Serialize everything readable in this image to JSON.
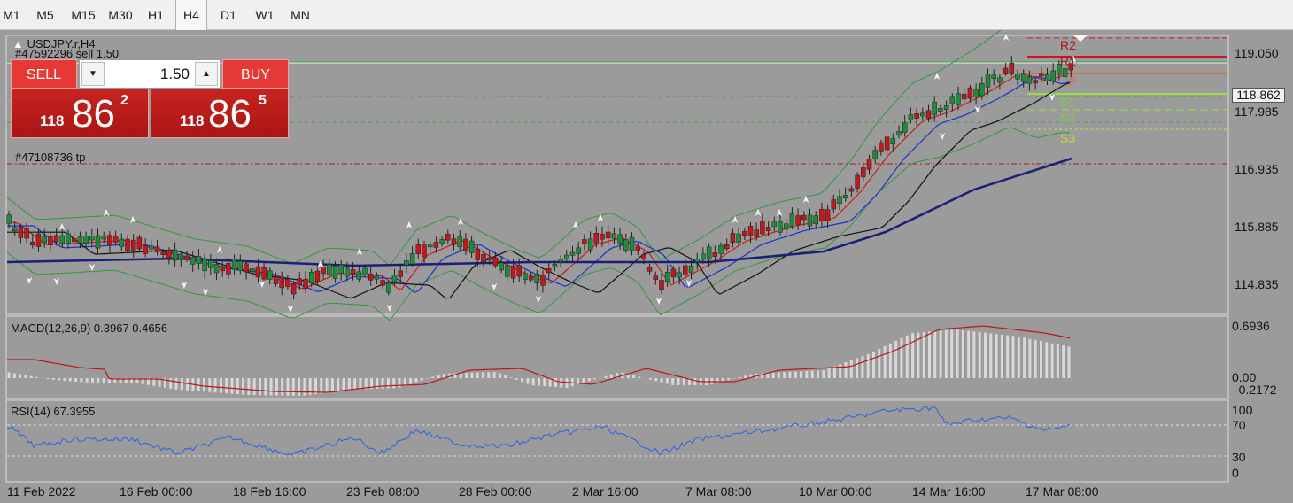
{
  "toolbar": {
    "timeframes": [
      "M1",
      "M5",
      "M15",
      "M30",
      "H1",
      "H4",
      "D1",
      "W1",
      "MN"
    ],
    "active": "H4"
  },
  "chart": {
    "symbol_title": "USDJPY.r,H4",
    "order_label": "#47592296 sell 1.50",
    "tp_label": "#47108736 tp",
    "current_price": "118.862",
    "price_axis": [
      "119.050",
      "117.985",
      "116.935",
      "115.885",
      "114.835"
    ],
    "time_axis": [
      "11 Feb 2022",
      "16 Feb 00:00",
      "18 Feb 16:00",
      "23 Feb 08:00",
      "28 Feb 00:00",
      "2 Mar 16:00",
      "7 Mar 08:00",
      "10 Mar 00:00",
      "14 Mar 16:00",
      "17 Mar 08:00"
    ],
    "pivot_labels": [
      "R2",
      "R1",
      "P",
      "S1",
      "S2",
      "S3"
    ],
    "colors": {
      "background": "#9b9b9b",
      "bull_candle": "#1f8a3a",
      "bear_candle": "#c0181b",
      "ma_fast": "#d11a1a",
      "ma_mid": "#1a2fd1",
      "ma_slow": "#111111",
      "ma_long": "#1b1f7a",
      "bollinger": "#2d9a3a",
      "macd_signal": "#c0141b",
      "rsi_line": "#2563eb"
    }
  },
  "one_click": {
    "sell_label": "SELL",
    "buy_label": "BUY",
    "lot": "1.50",
    "sell_price_small": "118",
    "sell_price_big": "86",
    "sell_price_sup": "2",
    "buy_price_small": "118",
    "buy_price_big": "86",
    "buy_price_sup": "5"
  },
  "macd": {
    "label": "MACD(12,26,9) 0.3967 0.4656",
    "axis": [
      "0.6936",
      "0.00",
      "-0.2172"
    ]
  },
  "rsi": {
    "label": "RSI(14) 67.3955",
    "axis": [
      "100",
      "70",
      "30",
      "0"
    ]
  }
}
